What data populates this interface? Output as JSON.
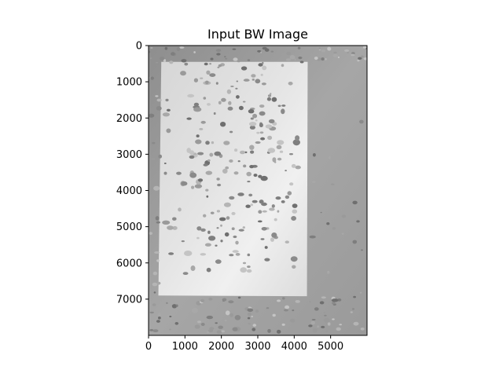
{
  "chart_data": {
    "type": "image",
    "title": "Input BW Image",
    "colormap": "gray",
    "xlim": [
      0,
      6000
    ],
    "ylim": [
      8000,
      0
    ],
    "x_ticks": [
      0,
      1000,
      2000,
      3000,
      4000,
      5000
    ],
    "y_ticks": [
      0,
      1000,
      2000,
      3000,
      4000,
      5000,
      6000,
      7000
    ],
    "grid": false,
    "image_regions": [
      {
        "name": "background",
        "shade": "#9d9d9d"
      },
      {
        "name": "paper-sheet",
        "shade": "#e2e2e2",
        "corners_data": [
          [
            350,
            450
          ],
          [
            4370,
            450
          ],
          [
            4350,
            6920
          ],
          [
            270,
            6900
          ]
        ]
      }
    ]
  }
}
